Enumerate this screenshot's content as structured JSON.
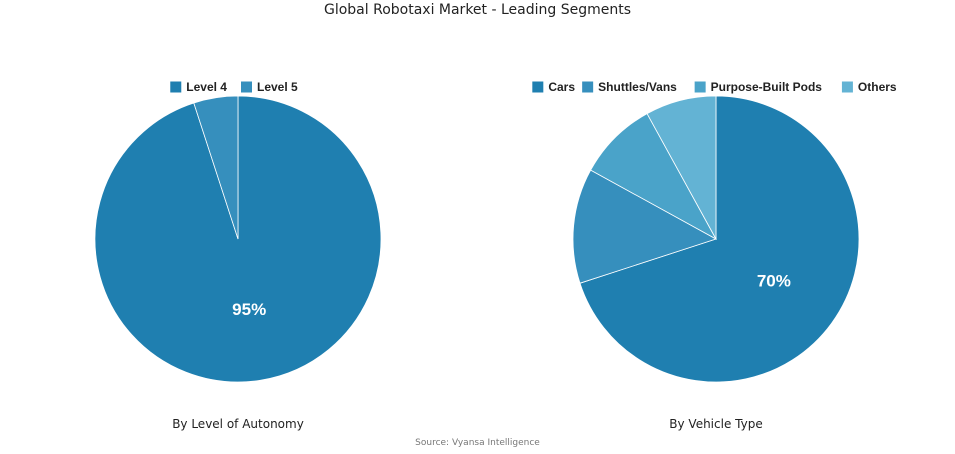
{
  "title": "Global Robotaxi Market - Leading Segments",
  "source": "Source: Vyansa Intelligence",
  "chart_data": [
    {
      "type": "pie",
      "caption": "By Level of Autonomy",
      "categories": [
        "Level 4",
        "Level 5"
      ],
      "values": [
        95,
        5
      ],
      "colors": [
        "#1f7fb0",
        "#368fbd"
      ],
      "data_labels": [
        "95%",
        ""
      ],
      "legend_position": "top"
    },
    {
      "type": "pie",
      "caption": "By Vehicle Type",
      "categories": [
        "Cars",
        "Shuttles/Vans",
        "Purpose-Built Pods",
        "Others"
      ],
      "values": [
        70,
        13,
        9,
        8
      ],
      "colors": [
        "#1f7fb0",
        "#368fbd",
        "#4aa3c9",
        "#63b3d4"
      ],
      "data_labels": [
        "70%",
        "",
        "",
        ""
      ],
      "legend_position": "top"
    }
  ]
}
